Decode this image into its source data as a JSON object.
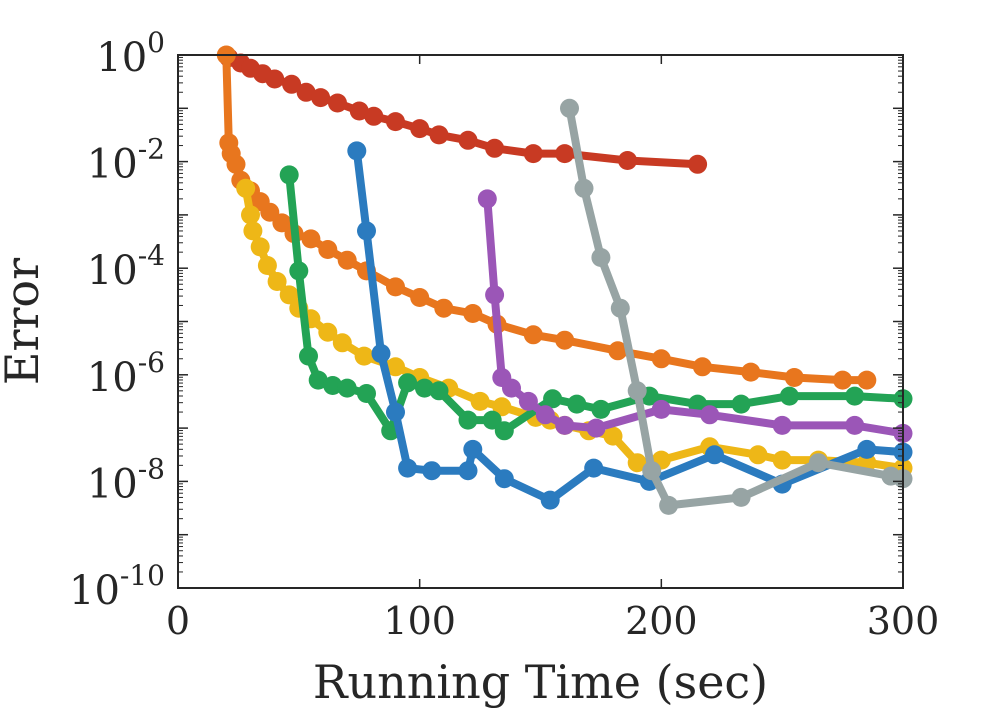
{
  "chart_data": {
    "type": "line",
    "title": "",
    "xlabel": "Running Time (sec)",
    "ylabel": "Error",
    "xlim": [
      0,
      300
    ],
    "ylim_log10": [
      -10,
      0
    ],
    "y_scale": "log",
    "xticks": [
      {
        "value": 0,
        "label": "0"
      },
      {
        "value": 100,
        "label": "100"
      },
      {
        "value": 200,
        "label": "200"
      },
      {
        "value": 300,
        "label": "300"
      }
    ],
    "yticks": [
      {
        "exp": 0,
        "base": "10",
        "sup": "0"
      },
      {
        "exp": -2,
        "base": "10",
        "sup": "-2"
      },
      {
        "exp": -4,
        "base": "10",
        "sup": "-4"
      },
      {
        "exp": -6,
        "base": "10",
        "sup": "-6"
      },
      {
        "exp": -8,
        "base": "10",
        "sup": "-8"
      },
      {
        "exp": -10,
        "base": "10",
        "sup": "-10"
      }
    ],
    "grid": false,
    "series": [
      {
        "name": "red",
        "color": "#C83A23",
        "x": [
          21,
          26,
          30,
          35,
          40,
          47,
          53,
          59,
          66,
          75,
          81,
          90,
          100,
          108,
          120,
          131,
          147,
          160,
          186,
          215
        ],
        "log10y": [
          -0.05,
          -0.15,
          -0.25,
          -0.35,
          -0.45,
          -0.55,
          -0.7,
          -0.8,
          -0.9,
          -1.05,
          -1.15,
          -1.25,
          -1.38,
          -1.5,
          -1.6,
          -1.75,
          -1.85,
          -1.85,
          -1.98,
          -2.05
        ]
      },
      {
        "name": "orange",
        "color": "#E8761E",
        "x": [
          20,
          21,
          22,
          24,
          26,
          30,
          34,
          38,
          43,
          48,
          55,
          62,
          70,
          78,
          90,
          100,
          110,
          122,
          132,
          147,
          160,
          182,
          200,
          217,
          237,
          255,
          275,
          285
        ],
        "log10y": [
          0,
          -1.65,
          -1.85,
          -2.05,
          -2.35,
          -2.55,
          -2.75,
          -2.95,
          -3.15,
          -3.35,
          -3.45,
          -3.65,
          -3.85,
          -4.05,
          -4.35,
          -4.55,
          -4.75,
          -4.85,
          -5.05,
          -5.25,
          -5.35,
          -5.55,
          -5.7,
          -5.85,
          -5.95,
          -6.05,
          -6.1,
          -6.1
        ]
      },
      {
        "name": "yellow",
        "color": "#EEB717",
        "x": [
          28,
          30,
          31,
          34,
          37,
          41,
          46,
          50,
          55,
          62,
          68,
          77,
          90,
          100,
          112,
          125,
          134,
          148,
          154,
          160,
          170,
          180,
          190,
          200,
          220,
          240,
          250,
          265,
          285,
          300
        ],
        "log10y": [
          -2.5,
          -3.0,
          -3.3,
          -3.6,
          -3.95,
          -4.25,
          -4.5,
          -4.75,
          -4.95,
          -5.2,
          -5.4,
          -5.65,
          -5.85,
          -6.05,
          -6.25,
          -6.5,
          -6.6,
          -6.8,
          -6.85,
          -6.95,
          -7.05,
          -7.15,
          -7.65,
          -7.6,
          -7.35,
          -7.5,
          -7.6,
          -7.6,
          -7.65,
          -7.75
        ]
      },
      {
        "name": "green",
        "color": "#23A355",
        "x": [
          46,
          50,
          54,
          58,
          64,
          70,
          78,
          88,
          95,
          102,
          108,
          120,
          130,
          135,
          155,
          165,
          175,
          195,
          215,
          233,
          253,
          280,
          300
        ],
        "log10y": [
          -2.25,
          -4.05,
          -5.65,
          -6.1,
          -6.2,
          -6.25,
          -6.35,
          -7.05,
          -6.15,
          -6.25,
          -6.3,
          -6.85,
          -6.85,
          -7.05,
          -6.45,
          -6.55,
          -6.65,
          -6.4,
          -6.55,
          -6.55,
          -6.4,
          -6.4,
          -6.45
        ]
      },
      {
        "name": "blue",
        "color": "#2B7BBF",
        "x": [
          74,
          78,
          84,
          90,
          95,
          105,
          120,
          122,
          135,
          154,
          172,
          195,
          222,
          250,
          285,
          300
        ],
        "log10y": [
          -1.8,
          -3.3,
          -5.6,
          -6.7,
          -7.75,
          -7.8,
          -7.8,
          -7.4,
          -7.95,
          -8.35,
          -7.75,
          -8.0,
          -7.5,
          -8.05,
          -7.4,
          -7.45
        ]
      },
      {
        "name": "purple",
        "color": "#9B56B7",
        "x": [
          128,
          131,
          134,
          138,
          145,
          152,
          160,
          173,
          200,
          220,
          250,
          280,
          300
        ],
        "log10y": [
          -2.7,
          -4.5,
          -6.05,
          -6.25,
          -6.5,
          -6.75,
          -6.95,
          -7.0,
          -6.65,
          -6.75,
          -6.95,
          -6.95,
          -7.1
        ]
      },
      {
        "name": "gray",
        "color": "#97A4A4",
        "x": [
          162,
          168,
          175,
          183,
          190,
          196,
          203,
          233,
          265,
          295,
          300
        ],
        "log10y": [
          -1.0,
          -2.5,
          -3.8,
          -4.75,
          -6.3,
          -7.8,
          -8.45,
          -8.3,
          -7.65,
          -7.9,
          -7.95
        ]
      }
    ]
  }
}
